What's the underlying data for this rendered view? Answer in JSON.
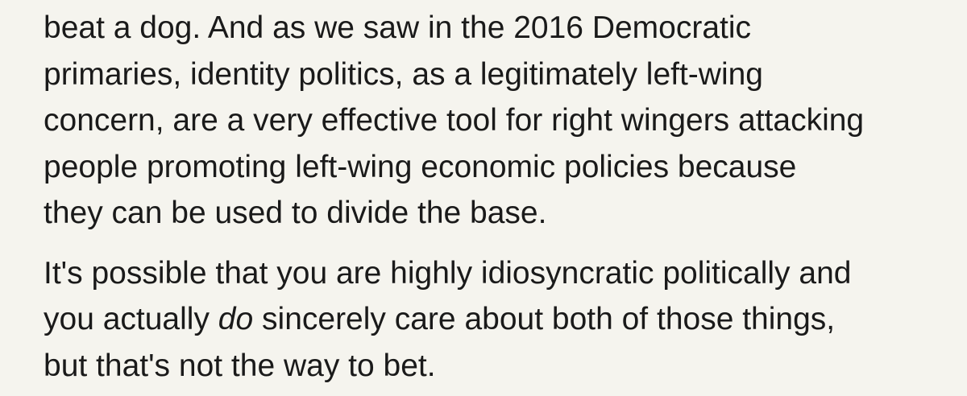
{
  "document": {
    "paragraphs": [
      {
        "lines": [
          "beat a dog. And as we saw in the 2016 Democratic",
          "primaries, identity politics, as a legitimately left-wing",
          "concern, are a very effective tool for right wingers attacking",
          "people promoting left-wing economic policies because",
          "they can be used to divide the base."
        ]
      },
      {
        "line1": "It's possible that you are highly idiosyncratic politically and",
        "line2_before": "you actually ",
        "line2_emphasis": "do",
        "line2_after": " sincerely care about both of those things,",
        "line3": "but that's not the way to bet."
      }
    ]
  }
}
